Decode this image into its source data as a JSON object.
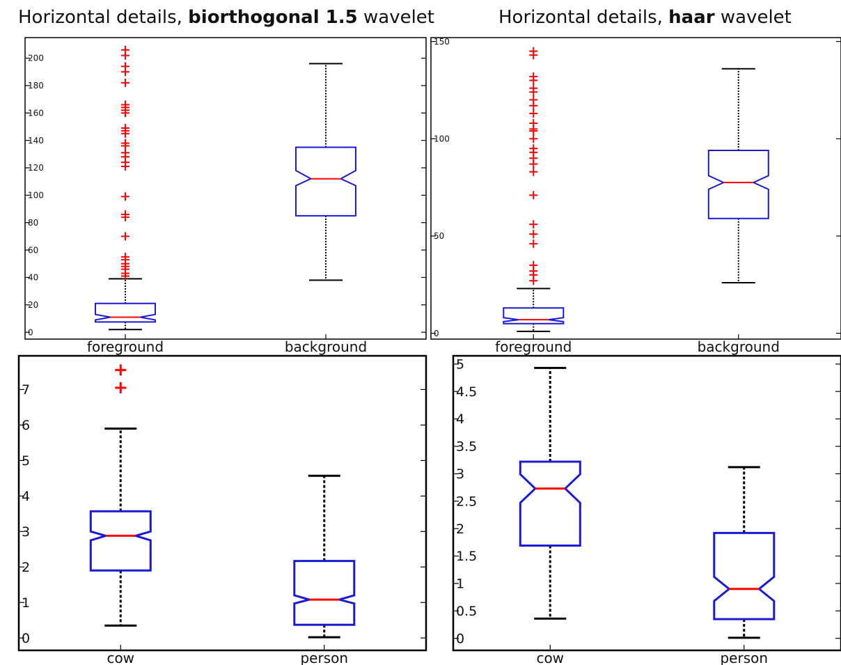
{
  "titles": {
    "left": {
      "prefix": "Horizontal details, ",
      "bold": "biorthogonal 1.5",
      "suffix": " wavelet"
    },
    "right": {
      "prefix": "Horizontal details, ",
      "bold": "haar",
      "suffix": " wavelet"
    }
  },
  "colors": {
    "box": "#1a1ad6",
    "median": "#ff0000",
    "whisker": "#000000",
    "outlier": "#ff0000",
    "axis": "#000000"
  },
  "chart_data": [
    {
      "type": "boxplot",
      "notched": true,
      "categories": [
        "foreground",
        "background"
      ],
      "ylim": [
        -5,
        215
      ],
      "yticks": [
        0,
        20,
        40,
        60,
        80,
        100,
        120,
        140,
        160,
        180,
        200
      ],
      "ytick_labels": [
        "0",
        "20",
        "40",
        "60",
        "80",
        "100",
        "120",
        "140",
        "160",
        "180",
        "200"
      ],
      "boxes": [
        {
          "category": "foreground",
          "whisker_low": 2,
          "q1": 7.5,
          "notch_low": 9,
          "median": 11,
          "notch_high": 13,
          "q3": 21,
          "whisker_high": 39,
          "outliers": [
            41,
            43,
            46,
            48,
            50,
            53,
            55,
            70,
            84,
            86,
            99,
            121,
            124,
            128,
            131,
            136,
            138,
            145,
            147,
            149,
            160,
            162,
            164,
            166,
            182,
            190,
            194,
            202,
            206
          ]
        },
        {
          "category": "background",
          "whisker_low": 38,
          "q1": 85,
          "notch_low": 107,
          "median": 112,
          "notch_high": 118,
          "q3": 135,
          "whisker_high": 196,
          "outliers": []
        }
      ]
    },
    {
      "type": "boxplot",
      "notched": true,
      "categories": [
        "foreground",
        "background"
      ],
      "ylim": [
        -3,
        152
      ],
      "yticks": [
        0,
        50,
        100,
        150
      ],
      "ytick_labels": [
        "0",
        "50",
        "100",
        "150"
      ],
      "boxes": [
        {
          "category": "foreground",
          "whisker_low": 1,
          "q1": 5,
          "notch_low": 6,
          "median": 7,
          "notch_high": 8,
          "q3": 13,
          "whisker_high": 23,
          "outliers": [
            27,
            30,
            32,
            35,
            46,
            51,
            56,
            71,
            83,
            87,
            90,
            93,
            95,
            100,
            104,
            105,
            108,
            113,
            117,
            120,
            124,
            126,
            130,
            132,
            143,
            145
          ]
        },
        {
          "category": "background",
          "whisker_low": 26,
          "q1": 59,
          "notch_low": 74,
          "median": 77.5,
          "notch_high": 81,
          "q3": 94,
          "whisker_high": 136,
          "outliers": []
        }
      ]
    },
    {
      "type": "boxplot",
      "notched": true,
      "categories": [
        "cow",
        "person"
      ],
      "ylim": [
        -0.35,
        7.95
      ],
      "yticks": [
        0,
        1,
        2,
        3,
        4,
        5,
        6,
        7
      ],
      "ytick_labels": [
        "0",
        "1",
        "2",
        "3",
        "4",
        "5",
        "6",
        "7"
      ],
      "boxes": [
        {
          "category": "cow",
          "whisker_low": 0.35,
          "q1": 1.9,
          "notch_low": 2.75,
          "median": 2.88,
          "notch_high": 3.0,
          "q3": 3.57,
          "whisker_high": 5.9,
          "outliers": [
            7.05,
            7.55
          ]
        },
        {
          "category": "person",
          "whisker_low": 0.02,
          "q1": 0.37,
          "notch_low": 0.97,
          "median": 1.08,
          "notch_high": 1.2,
          "q3": 2.17,
          "whisker_high": 4.57,
          "outliers": []
        }
      ]
    },
    {
      "type": "boxplot",
      "notched": true,
      "categories": [
        "cow",
        "person"
      ],
      "ylim": [
        -0.22,
        5.15
      ],
      "yticks": [
        0,
        0.5,
        1,
        1.5,
        2,
        2.5,
        3,
        3.5,
        4,
        4.5,
        5
      ],
      "ytick_labels": [
        "0",
        "0.5",
        "1",
        "1.5",
        "2",
        "2.5",
        "3",
        "3.5",
        "4",
        "4.5",
        "5"
      ],
      "boxes": [
        {
          "category": "cow",
          "whisker_low": 0.36,
          "q1": 1.69,
          "notch_low": 2.47,
          "median": 2.73,
          "notch_high": 2.99,
          "q3": 3.22,
          "whisker_high": 4.93,
          "outliers": []
        },
        {
          "category": "person",
          "whisker_low": 0.01,
          "q1": 0.35,
          "notch_low": 0.68,
          "median": 0.9,
          "notch_high": 1.12,
          "q3": 1.92,
          "whisker_high": 3.12,
          "outliers": []
        }
      ]
    }
  ]
}
